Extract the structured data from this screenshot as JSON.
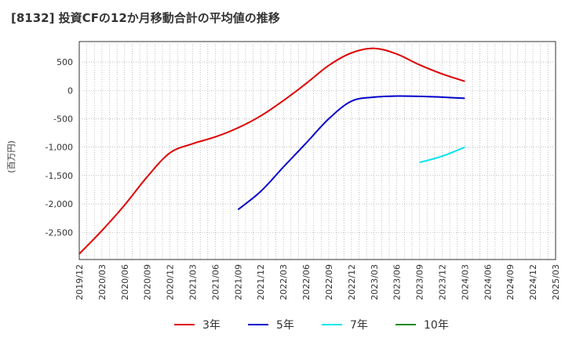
{
  "title": "[8132]  投資CFの12か月移動合計の平均値の推移",
  "chart_data": {
    "type": "line",
    "ylabel": "(百万円)",
    "xlabel": "",
    "ylim": [
      -2980,
      860
    ],
    "y_ticks": [
      500,
      0,
      -500,
      -1000,
      -1500,
      -2000,
      -2500
    ],
    "y_tick_labels": [
      "500",
      "0",
      "-500",
      "-1,000",
      "-1,500",
      "-2,000",
      "-2,500"
    ],
    "x_ticks": [
      "2019/12",
      "2020/03",
      "2020/06",
      "2020/09",
      "2020/12",
      "2021/03",
      "2021/06",
      "2021/09",
      "2021/12",
      "2022/03",
      "2022/06",
      "2022/09",
      "2022/12",
      "2023/03",
      "2023/06",
      "2023/09",
      "2023/12",
      "2024/03",
      "2024/06",
      "2024/09",
      "2024/12",
      "2025/03"
    ],
    "grid": true,
    "legend_position": "bottom",
    "series": [
      {
        "name": "3年",
        "color": "#dd0000",
        "points": [
          [
            "2019/12",
            -2880
          ],
          [
            "2020/03",
            -2470
          ],
          [
            "2020/06",
            -2020
          ],
          [
            "2020/09",
            -1520
          ],
          [
            "2020/12",
            -1100
          ],
          [
            "2021/03",
            -940
          ],
          [
            "2021/06",
            -820
          ],
          [
            "2021/09",
            -660
          ],
          [
            "2021/12",
            -450
          ],
          [
            "2022/03",
            -180
          ],
          [
            "2022/06",
            120
          ],
          [
            "2022/09",
            440
          ],
          [
            "2022/12",
            660
          ],
          [
            "2023/03",
            740
          ],
          [
            "2023/06",
            640
          ],
          [
            "2023/09",
            450
          ],
          [
            "2023/12",
            290
          ],
          [
            "2024/03",
            160
          ]
        ]
      },
      {
        "name": "5年",
        "color": "#0000cc",
        "points": [
          [
            "2021/09",
            -2100
          ],
          [
            "2021/12",
            -1780
          ],
          [
            "2022/03",
            -1350
          ],
          [
            "2022/06",
            -930
          ],
          [
            "2022/09",
            -500
          ],
          [
            "2022/12",
            -190
          ],
          [
            "2023/03",
            -120
          ],
          [
            "2023/06",
            -100
          ],
          [
            "2023/09",
            -105
          ],
          [
            "2023/12",
            -120
          ],
          [
            "2024/03",
            -140
          ]
        ]
      },
      {
        "name": "7年",
        "color": "#00e5ee",
        "points": [
          [
            "2023/09",
            -1270
          ],
          [
            "2023/12",
            -1160
          ],
          [
            "2024/03",
            -1000
          ]
        ]
      },
      {
        "name": "10年",
        "color": "#228b22",
        "points": []
      }
    ]
  }
}
